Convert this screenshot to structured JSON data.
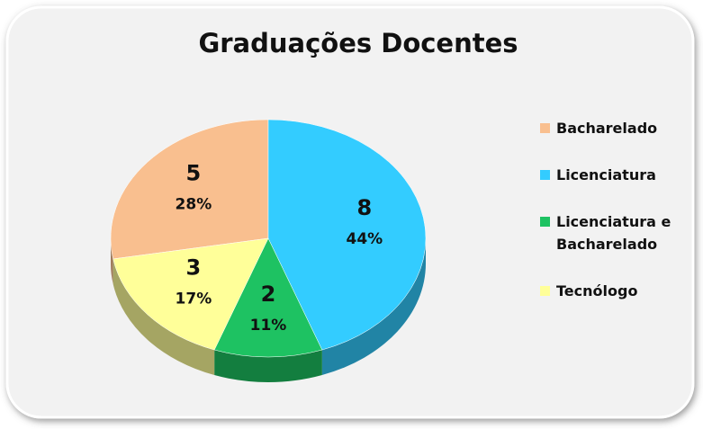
{
  "chart_data": {
    "type": "pie",
    "title": "Graduações Docentes",
    "categories": [
      "Bacharelado",
      "Licenciatura",
      "Licenciatura e Bacharelado",
      "Tecnólogo"
    ],
    "values": [
      5,
      8,
      2,
      3
    ],
    "percent_labels": [
      "28%",
      "44%",
      "11%",
      "17%"
    ],
    "colors": [
      "#f9bf8f",
      "#33ccff",
      "#1ec262",
      "#ffff99"
    ],
    "legend": "right"
  }
}
